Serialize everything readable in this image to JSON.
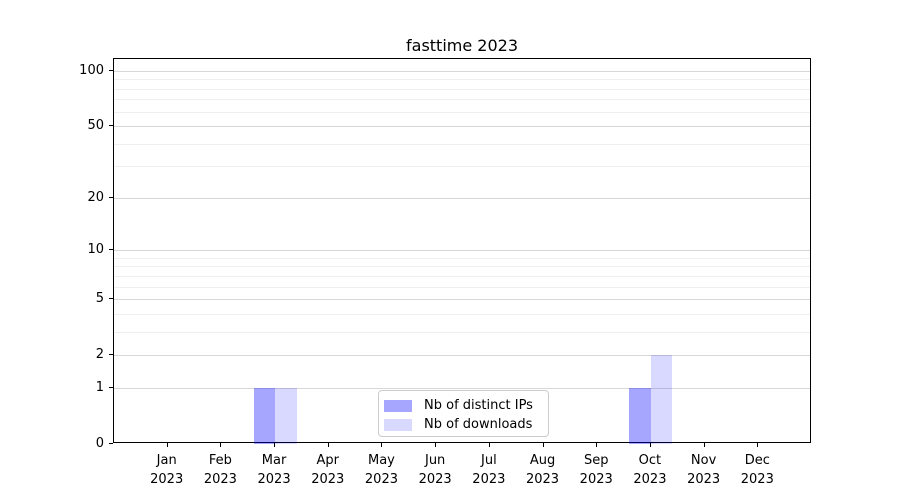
{
  "chart_data": {
    "type": "bar",
    "title": "fasttime 2023",
    "months": [
      "Jan",
      "Feb",
      "Mar",
      "Apr",
      "May",
      "Jun",
      "Jul",
      "Aug",
      "Sep",
      "Oct",
      "Nov",
      "Dec"
    ],
    "year": "2023",
    "categories": [
      "Jan 2023",
      "Feb 2023",
      "Mar 2023",
      "Apr 2023",
      "May 2023",
      "Jun 2023",
      "Jul 2023",
      "Aug 2023",
      "Sep 2023",
      "Oct 2023",
      "Nov 2023",
      "Dec 2023"
    ],
    "series": [
      {
        "name": "Nb of distinct IPs",
        "color": "#0000ff59",
        "values": [
          0,
          0,
          1,
          0,
          0,
          0,
          0,
          0,
          0,
          1,
          0,
          0
        ]
      },
      {
        "name": "Nb of downloads",
        "color": "#0000ff26",
        "values": [
          0,
          0,
          1,
          0,
          0,
          0,
          0,
          0,
          0,
          2,
          0,
          0
        ]
      }
    ],
    "y_scale": "log1p",
    "y_ticks": [
      0,
      1,
      2,
      5,
      10,
      20,
      50,
      100
    ],
    "y_minor_ticks": [
      3,
      4,
      6,
      7,
      8,
      9,
      30,
      40,
      60,
      70,
      80,
      90
    ],
    "ylim": [
      0,
      116
    ],
    "xlabel": "",
    "ylabel": "",
    "grid": "on",
    "legend_position": "lower center"
  }
}
